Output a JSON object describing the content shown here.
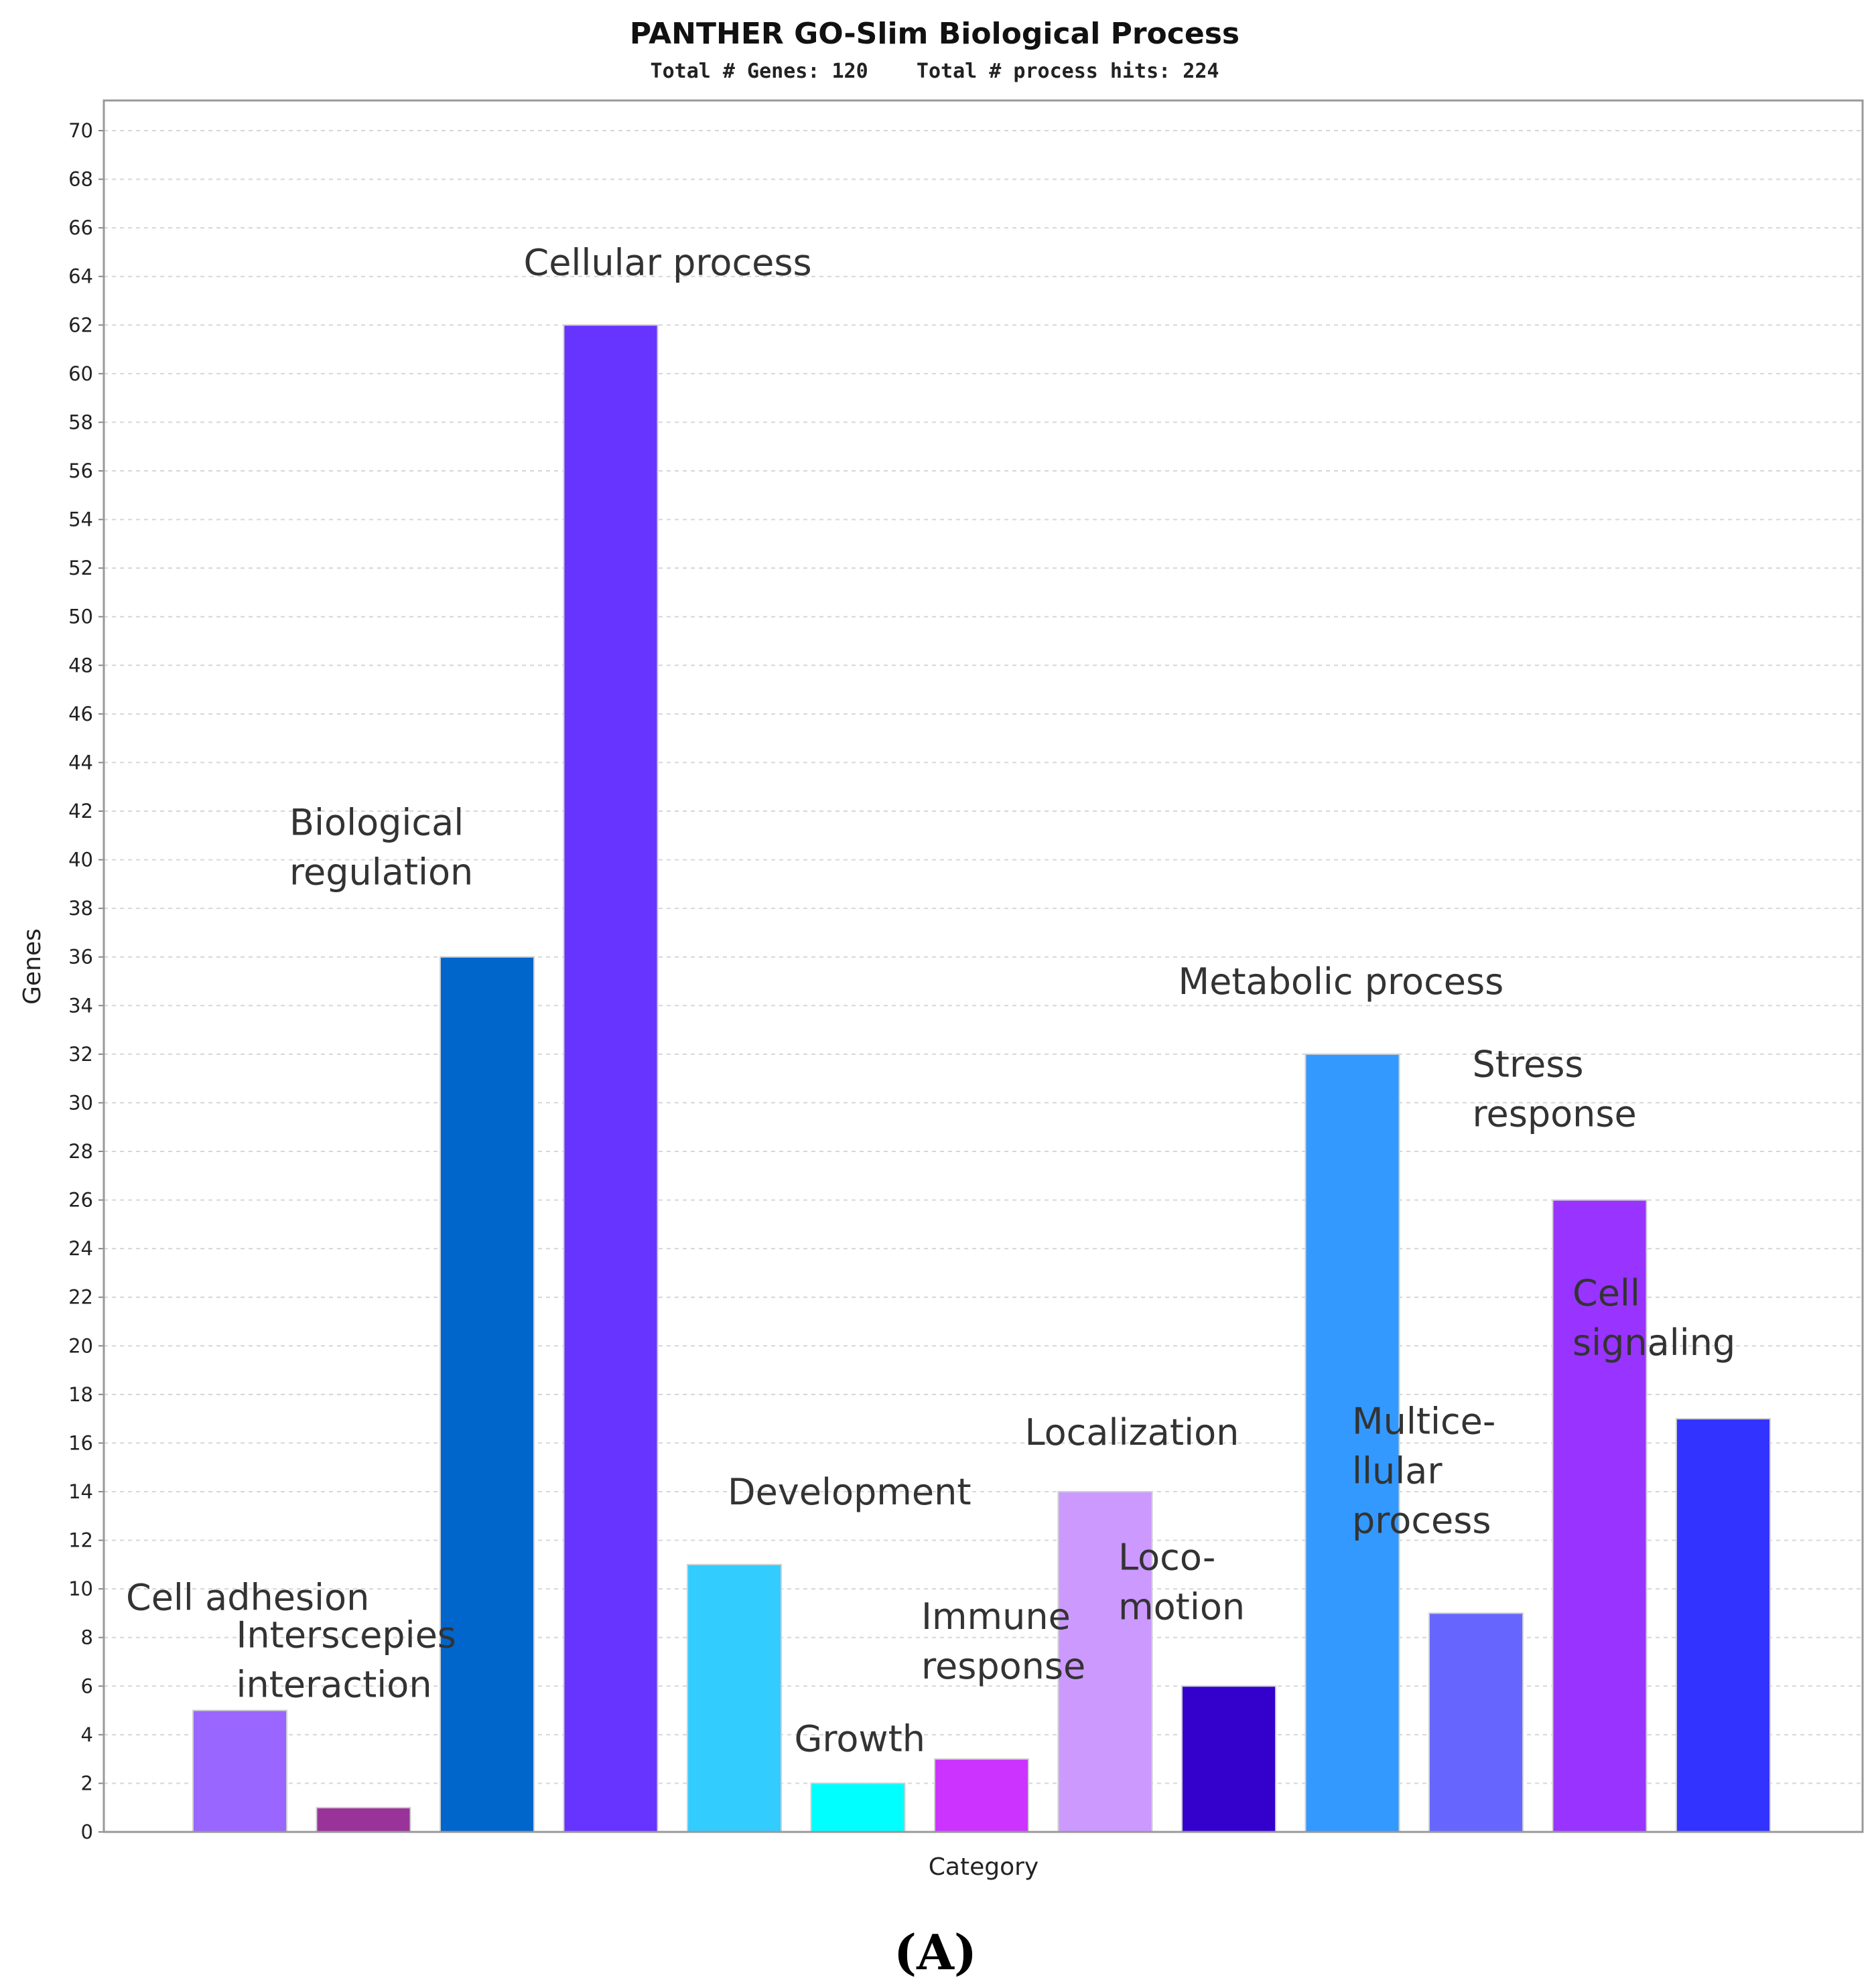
{
  "chart_data": {
    "type": "bar",
    "title": "PANTHER GO-Slim Biological Process",
    "subtitle": "Total # Genes: 120    Total # process hits: 224",
    "xlabel": "Category",
    "ylabel": "Genes",
    "ylim": [
      0,
      70
    ],
    "ytick_step": 2,
    "grid": true,
    "legend": "none",
    "panel_label": "(A)",
    "categories": [
      "Cell adhesion",
      "Interscepies interaction",
      "Biological regulation",
      "Cellular process",
      "Development",
      "Growth",
      "Immune response",
      "Localization",
      "Locomotion",
      "Metabolic process",
      "Multicellular process",
      "Stress response",
      "Cell signaling"
    ],
    "values": [
      5,
      1,
      36,
      62,
      11,
      2,
      3,
      14,
      6,
      32,
      9,
      26,
      17
    ],
    "colors": [
      "#9966ff",
      "#993399",
      "#0066cc",
      "#6633ff",
      "#33ccff",
      "#00ffff",
      "#cc33ff",
      "#cc99ff",
      "#3300cc",
      "#3399ff",
      "#6666ff",
      "#9933ff",
      "#3333ff"
    ],
    "bar_labels": [
      [
        "Cell adhesion"
      ],
      [
        "Interscepies",
        "interaction"
      ],
      [
        "Biological",
        "regulation"
      ],
      [
        "Cellular process"
      ],
      [
        "Development"
      ],
      [
        "Growth"
      ],
      [
        "Immune",
        "response"
      ],
      [
        "Localization"
      ],
      [
        "Loco-",
        "motion"
      ],
      [
        "Metabolic process"
      ],
      [
        "Multice-",
        "llular",
        "process"
      ],
      [
        "Stress",
        "response"
      ],
      [
        "Cell",
        "signaling"
      ]
    ]
  }
}
